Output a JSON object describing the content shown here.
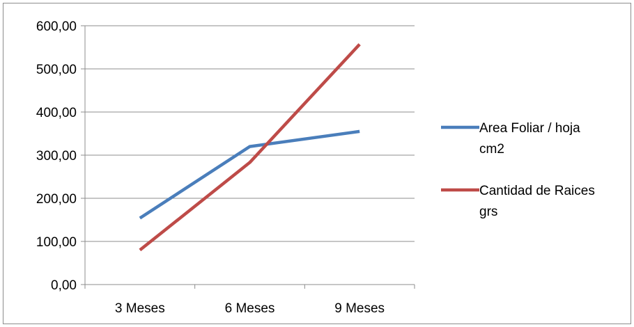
{
  "chart_data": {
    "type": "line",
    "title": "",
    "xlabel": "",
    "ylabel": "",
    "categories": [
      "3 Meses",
      "6 Meses",
      "9 Meses"
    ],
    "ylim": [
      0,
      600
    ],
    "yticks": [
      0,
      100,
      200,
      300,
      400,
      500,
      600
    ],
    "ytick_labels": [
      "0,00",
      "100,00",
      "200,00",
      "300,00",
      "400,00",
      "500,00",
      "600,00"
    ],
    "grid": true,
    "legend_position": "right",
    "series": [
      {
        "name": "Area Foliar / hoja cm2",
        "legend_lines": [
          "Area Foliar / hoja",
          "cm2"
        ],
        "color": "#4a7ebb",
        "values": [
          154,
          320,
          355
        ]
      },
      {
        "name": "Cantidad de Raices grs",
        "legend_lines": [
          "Cantidad de Raices",
          "grs"
        ],
        "color": "#be4b48",
        "values": [
          80,
          283,
          557
        ]
      }
    ]
  }
}
